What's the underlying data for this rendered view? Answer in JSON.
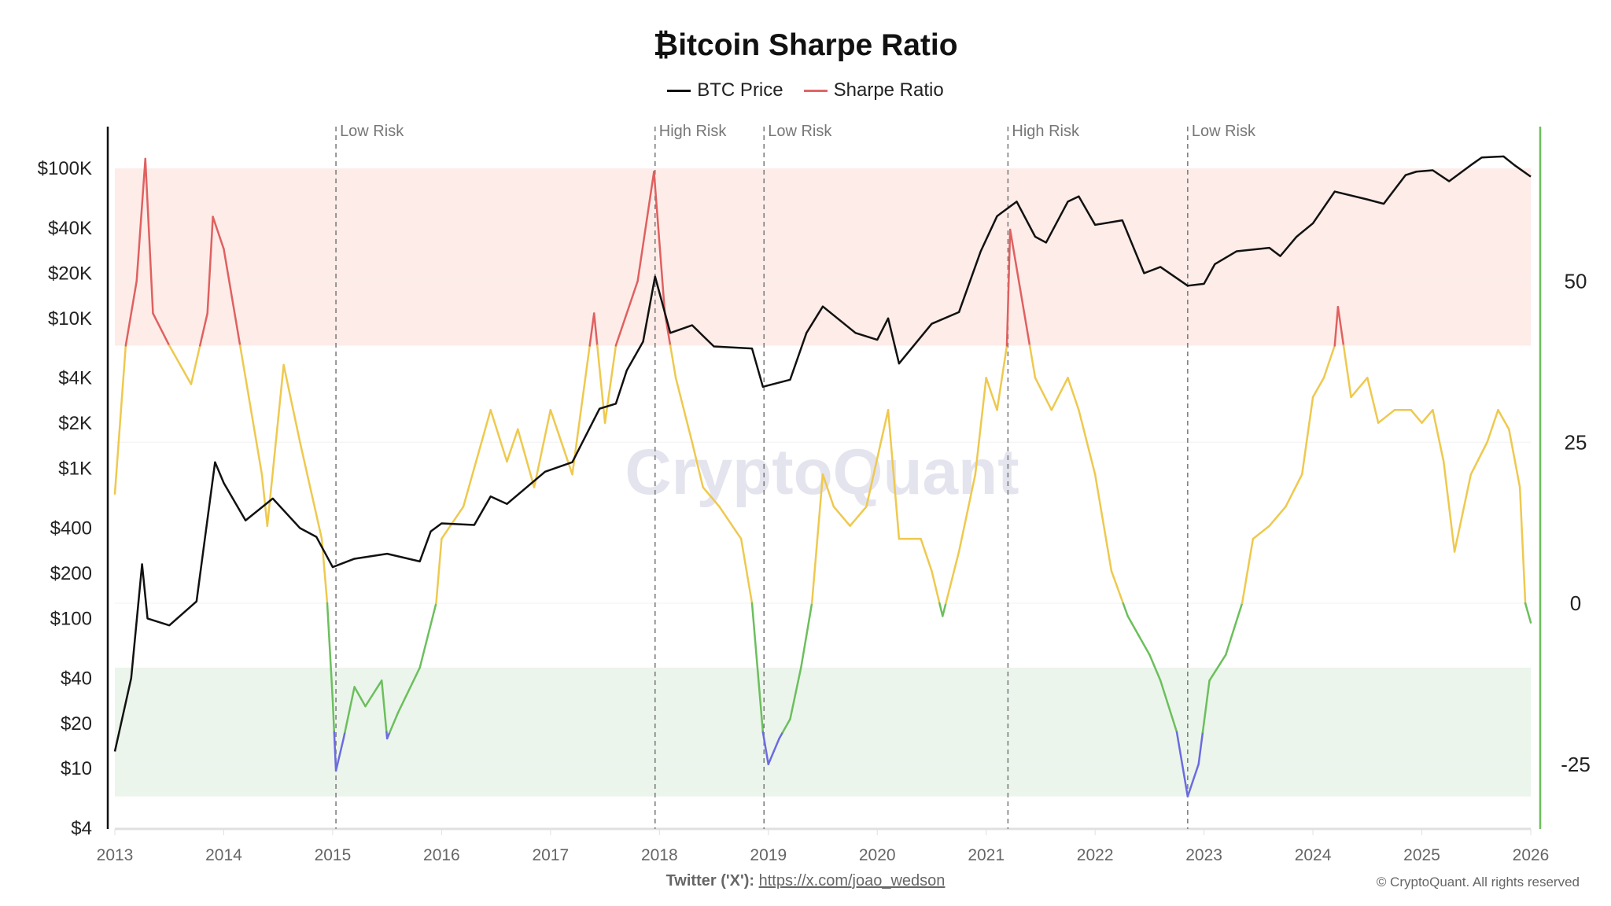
{
  "chart_data": {
    "type": "line",
    "title": "₿itcoin Sharpe Ratio",
    "legend": [
      {
        "name": "BTC Price",
        "color": "#111111"
      },
      {
        "name": "Sharpe Ratio",
        "color": "#e06666"
      }
    ],
    "legend_position": "top-center",
    "x_ticks": [
      "2013",
      "2014",
      "2015",
      "2016",
      "2017",
      "2018",
      "2019",
      "2020",
      "2021",
      "2022",
      "2023",
      "2024",
      "2025",
      "2026"
    ],
    "xlim": [
      2013,
      2026
    ],
    "y_left": {
      "scale": "log",
      "ticks": [
        "$100K",
        "$40K",
        "$20K",
        "$10K",
        "$4K",
        "$2K",
        "$1K",
        "$400",
        "$200",
        "$100",
        "$40",
        "$20",
        "$10",
        "$4"
      ],
      "tick_values": [
        100000,
        40000,
        20000,
        10000,
        4000,
        2000,
        1000,
        400,
        200,
        100,
        40,
        20,
        10,
        4
      ],
      "range": [
        4,
        100000
      ]
    },
    "y_right": {
      "scale": "linear",
      "ticks": [
        "50",
        "25",
        "0",
        "-25"
      ],
      "tick_values": [
        50,
        25,
        0,
        -25
      ],
      "range": [
        -35,
        74
      ]
    },
    "bands": [
      {
        "zone": "high",
        "from": 40,
        "to": 67.5,
        "color": "#fdece8"
      },
      {
        "zone": "low",
        "from": -30,
        "to": -10,
        "color": "#ebf5ec"
      }
    ],
    "sharpe_colors": {
      "above_40": "#e06060",
      "0_to_40": "#eec94e",
      "minus20_to_0": "#6cbf5c",
      "below_minus20": "#6b6be0"
    },
    "annotations": [
      {
        "x": 2015.03,
        "label": "Low Risk"
      },
      {
        "x": 2017.96,
        "label": "High Risk"
      },
      {
        "x": 2018.96,
        "label": "Low Risk"
      },
      {
        "x": 2021.2,
        "label": "High Risk"
      },
      {
        "x": 2022.85,
        "label": "Low Risk"
      }
    ],
    "series": [
      {
        "name": "BTC Price",
        "axis": "left",
        "points": [
          [
            2013.0,
            13
          ],
          [
            2013.15,
            40
          ],
          [
            2013.25,
            230
          ],
          [
            2013.3,
            100
          ],
          [
            2013.5,
            90
          ],
          [
            2013.75,
            130
          ],
          [
            2013.92,
            1100
          ],
          [
            2014.0,
            800
          ],
          [
            2014.2,
            450
          ],
          [
            2014.45,
            630
          ],
          [
            2014.7,
            400
          ],
          [
            2014.85,
            350
          ],
          [
            2015.0,
            220
          ],
          [
            2015.2,
            250
          ],
          [
            2015.5,
            270
          ],
          [
            2015.8,
            240
          ],
          [
            2015.9,
            380
          ],
          [
            2016.0,
            430
          ],
          [
            2016.3,
            420
          ],
          [
            2016.45,
            650
          ],
          [
            2016.6,
            580
          ],
          [
            2016.95,
            950
          ],
          [
            2017.2,
            1100
          ],
          [
            2017.45,
            2500
          ],
          [
            2017.6,
            2700
          ],
          [
            2017.7,
            4500
          ],
          [
            2017.85,
            7000
          ],
          [
            2017.96,
            19000
          ],
          [
            2018.1,
            8000
          ],
          [
            2018.3,
            9000
          ],
          [
            2018.5,
            6500
          ],
          [
            2018.85,
            6300
          ],
          [
            2018.95,
            3500
          ],
          [
            2019.2,
            3900
          ],
          [
            2019.35,
            8000
          ],
          [
            2019.5,
            12000
          ],
          [
            2019.8,
            8000
          ],
          [
            2020.0,
            7200
          ],
          [
            2020.1,
            10000
          ],
          [
            2020.2,
            5000
          ],
          [
            2020.5,
            9200
          ],
          [
            2020.75,
            11000
          ],
          [
            2020.95,
            28000
          ],
          [
            2021.1,
            48000
          ],
          [
            2021.28,
            60000
          ],
          [
            2021.45,
            35000
          ],
          [
            2021.55,
            32000
          ],
          [
            2021.75,
            60000
          ],
          [
            2021.85,
            65000
          ],
          [
            2022.0,
            42000
          ],
          [
            2022.25,
            45000
          ],
          [
            2022.45,
            20000
          ],
          [
            2022.6,
            22000
          ],
          [
            2022.85,
            16500
          ],
          [
            2023.0,
            17000
          ],
          [
            2023.1,
            23000
          ],
          [
            2023.3,
            28000
          ],
          [
            2023.6,
            29500
          ],
          [
            2023.7,
            26000
          ],
          [
            2023.85,
            35000
          ],
          [
            2024.0,
            43000
          ],
          [
            2024.2,
            70000
          ],
          [
            2024.5,
            62000
          ],
          [
            2024.65,
            58000
          ],
          [
            2024.85,
            90000
          ],
          [
            2024.95,
            95000
          ],
          [
            2025.1,
            97000
          ],
          [
            2025.25,
            82000
          ],
          [
            2025.45,
            105000
          ],
          [
            2025.55,
            118000
          ],
          [
            2025.75,
            120000
          ],
          [
            2025.85,
            105000
          ],
          [
            2026.0,
            88000
          ]
        ]
      },
      {
        "name": "Sharpe Ratio",
        "axis": "right",
        "points": [
          [
            2013.0,
            17
          ],
          [
            2013.1,
            40
          ],
          [
            2013.2,
            50
          ],
          [
            2013.28,
            69
          ],
          [
            2013.35,
            45
          ],
          [
            2013.5,
            40
          ],
          [
            2013.7,
            34
          ],
          [
            2013.85,
            45
          ],
          [
            2013.9,
            60
          ],
          [
            2014.0,
            55
          ],
          [
            2014.1,
            45
          ],
          [
            2014.2,
            35
          ],
          [
            2014.35,
            20
          ],
          [
            2014.4,
            12
          ],
          [
            2014.55,
            37
          ],
          [
            2014.7,
            25
          ],
          [
            2014.9,
            10
          ],
          [
            2014.95,
            0
          ],
          [
            2015.0,
            -15
          ],
          [
            2015.03,
            -26
          ],
          [
            2015.1,
            -21
          ],
          [
            2015.2,
            -13
          ],
          [
            2015.3,
            -16
          ],
          [
            2015.45,
            -12
          ],
          [
            2015.5,
            -21
          ],
          [
            2015.6,
            -17
          ],
          [
            2015.8,
            -10
          ],
          [
            2015.95,
            0
          ],
          [
            2016.0,
            10
          ],
          [
            2016.2,
            15
          ],
          [
            2016.45,
            30
          ],
          [
            2016.6,
            22
          ],
          [
            2016.7,
            27
          ],
          [
            2016.85,
            18
          ],
          [
            2017.0,
            30
          ],
          [
            2017.2,
            20
          ],
          [
            2017.4,
            45
          ],
          [
            2017.5,
            28
          ],
          [
            2017.6,
            40
          ],
          [
            2017.8,
            50
          ],
          [
            2017.95,
            67
          ],
          [
            2018.05,
            45
          ],
          [
            2018.15,
            35
          ],
          [
            2018.3,
            25
          ],
          [
            2018.4,
            18
          ],
          [
            2018.55,
            15
          ],
          [
            2018.75,
            10
          ],
          [
            2018.85,
            0
          ],
          [
            2018.95,
            -20
          ],
          [
            2019.0,
            -25
          ],
          [
            2019.1,
            -21
          ],
          [
            2019.2,
            -18
          ],
          [
            2019.3,
            -10
          ],
          [
            2019.4,
            0
          ],
          [
            2019.5,
            20
          ],
          [
            2019.6,
            15
          ],
          [
            2019.75,
            12
          ],
          [
            2019.9,
            15
          ],
          [
            2020.1,
            30
          ],
          [
            2020.2,
            10
          ],
          [
            2020.4,
            10
          ],
          [
            2020.5,
            5
          ],
          [
            2020.6,
            -2
          ],
          [
            2020.75,
            8
          ],
          [
            2020.9,
            20
          ],
          [
            2021.0,
            35
          ],
          [
            2021.1,
            30
          ],
          [
            2021.19,
            40
          ],
          [
            2021.22,
            58
          ],
          [
            2021.35,
            45
          ],
          [
            2021.45,
            35
          ],
          [
            2021.6,
            30
          ],
          [
            2021.75,
            35
          ],
          [
            2021.85,
            30
          ],
          [
            2022.0,
            20
          ],
          [
            2022.15,
            5
          ],
          [
            2022.3,
            -2
          ],
          [
            2022.4,
            -5
          ],
          [
            2022.5,
            -8
          ],
          [
            2022.6,
            -12
          ],
          [
            2022.75,
            -20
          ],
          [
            2022.85,
            -30
          ],
          [
            2022.95,
            -25
          ],
          [
            2023.05,
            -12
          ],
          [
            2023.2,
            -8
          ],
          [
            2023.35,
            0
          ],
          [
            2023.45,
            10
          ],
          [
            2023.6,
            12
          ],
          [
            2023.75,
            15
          ],
          [
            2023.9,
            20
          ],
          [
            2024.0,
            32
          ],
          [
            2024.1,
            35
          ],
          [
            2024.2,
            40
          ],
          [
            2024.23,
            46
          ],
          [
            2024.35,
            32
          ],
          [
            2024.5,
            35
          ],
          [
            2024.6,
            28
          ],
          [
            2024.75,
            30
          ],
          [
            2024.9,
            30
          ],
          [
            2025.0,
            28
          ],
          [
            2025.1,
            30
          ],
          [
            2025.2,
            22
          ],
          [
            2025.3,
            8
          ],
          [
            2025.45,
            20
          ],
          [
            2025.6,
            25
          ],
          [
            2025.7,
            30
          ],
          [
            2025.8,
            27
          ],
          [
            2025.9,
            18
          ],
          [
            2025.95,
            0
          ],
          [
            2026.0,
            -3
          ]
        ]
      }
    ],
    "watermark": "CryptoQuant",
    "grid": "horizontal-faint"
  },
  "footer": {
    "twitter_label": "Twitter ('X'):",
    "twitter_link": "https://x.com/joao_wedson",
    "copyright": "© CryptoQuant. All rights reserved"
  }
}
